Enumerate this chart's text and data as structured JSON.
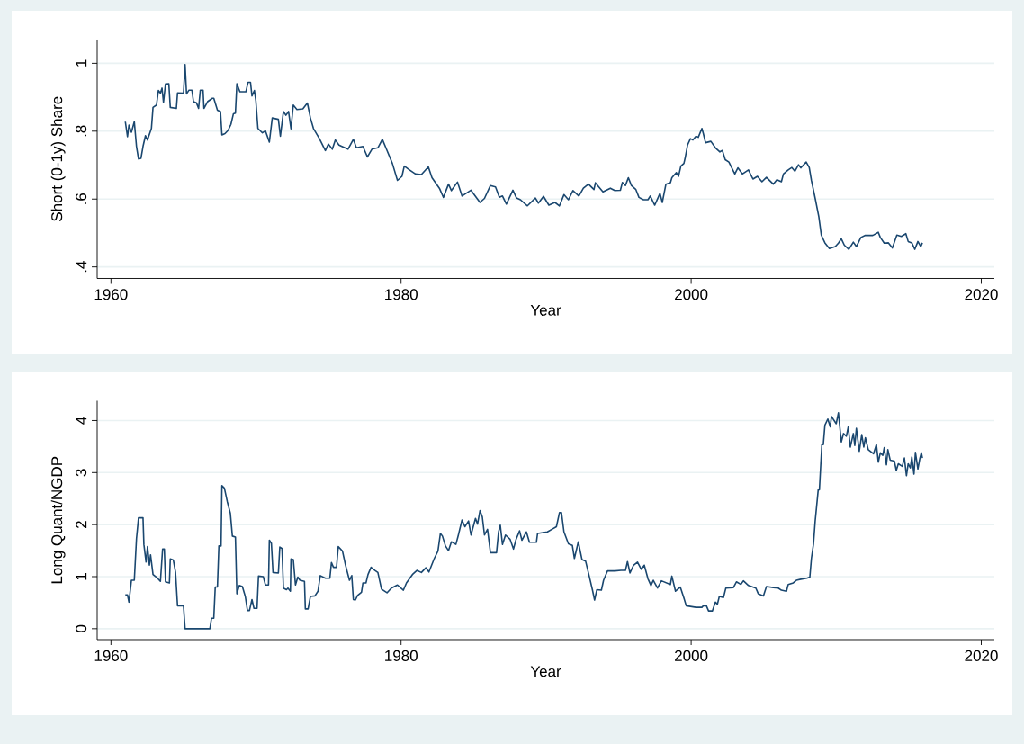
{
  "chart_data": [
    {
      "type": "line",
      "xlabel": "Year",
      "ylabel": "Short (0-1y) Share",
      "color": "#1a476f",
      "grid": "y",
      "xlim": [
        1959.05,
        2020.9
      ],
      "ylim": [
        0.366,
        1.07
      ],
      "xticks": [
        1960,
        1980,
        2000,
        2020
      ],
      "yticks": [
        {
          "value": 0.4,
          "label": ".4"
        },
        {
          "value": 0.6,
          "label": ".6"
        },
        {
          "value": 0.8,
          "label": ".8"
        },
        1
      ],
      "x": [
        1960.99,
        1961.14,
        1961.24,
        1961.41,
        1961.61,
        1961.76,
        1961.9,
        1962.07,
        1962.21,
        1962.38,
        1962.52,
        1962.79,
        1962.9,
        1963.14,
        1963.27,
        1963.41,
        1963.52,
        1963.62,
        1963.76,
        1963.99,
        1964.09,
        1964.51,
        1964.59,
        1965.0,
        1965.11,
        1965.21,
        1965.38,
        1965.58,
        1965.69,
        1965.89,
        1966.04,
        1966.16,
        1966.35,
        1966.41,
        1966.66,
        1966.99,
        1967.09,
        1967.34,
        1967.55,
        1967.65,
        1967.86,
        1968.07,
        1968.27,
        1968.44,
        1968.58,
        1968.68,
        1968.89,
        1969.3,
        1969.45,
        1969.62,
        1969.72,
        1969.89,
        1969.99,
        1970.13,
        1970.44,
        1970.65,
        1970.92,
        1971.12,
        1971.54,
        1971.68,
        1971.89,
        1972.06,
        1972.24,
        1972.41,
        1972.57,
        1972.82,
        1973.23,
        1973.54,
        1973.75,
        1973.96,
        1974.37,
        1974.78,
        1974.99,
        1975.26,
        1975.47,
        1975.72,
        1975.92,
        1976.34,
        1976.71,
        1976.92,
        1977.37,
        1977.68,
        1977.99,
        1978.4,
        1978.71,
        1979.03,
        1979.4,
        1979.75,
        1980.06,
        1980.22,
        1980.58,
        1980.99,
        1981.4,
        1981.88,
        1982.13,
        1982.64,
        1982.92,
        1983.27,
        1983.47,
        1983.89,
        1984.2,
        1984.82,
        1985.44,
        1985.75,
        1986.16,
        1986.51,
        1986.78,
        1986.99,
        1987.26,
        1987.71,
        1987.96,
        1988.23,
        1988.71,
        1989.26,
        1989.47,
        1989.82,
        1990.19,
        1990.61,
        1990.92,
        1991.23,
        1991.54,
        1991.85,
        1992.26,
        1992.57,
        1992.92,
        1993.3,
        1993.4,
        1993.92,
        1994.43,
        1994.74,
        1995.12,
        1995.26,
        1995.47,
        1995.67,
        1995.88,
        1996.19,
        1996.4,
        1996.71,
        1997.02,
        1997.18,
        1997.49,
        1997.85,
        1998.01,
        1998.26,
        1998.57,
        1998.67,
        1998.98,
        1999.13,
        1999.29,
        1999.5,
        1999.6,
        1999.75,
        1999.95,
        2000.12,
        2000.33,
        2000.49,
        2000.74,
        2000.84,
        2000.99,
        2001.36,
        2001.67,
        2001.98,
        2002.15,
        2002.35,
        2002.6,
        2003.01,
        2003.22,
        2003.53,
        2003.95,
        2004.26,
        2004.57,
        2004.88,
        2005.19,
        2005.66,
        2005.91,
        2006.22,
        2006.36,
        2006.69,
        2006.94,
        2007.15,
        2007.4,
        2007.56,
        2007.93,
        2008.14,
        2008.29,
        2008.55,
        2008.8,
        2008.97,
        2009.22,
        2009.53,
        2009.94,
        2010.15,
        2010.35,
        2010.56,
        2010.87,
        2011.18,
        2011.39,
        2011.7,
        2012.01,
        2012.52,
        2012.9,
        2013.04,
        2013.31,
        2013.6,
        2013.87,
        2014.18,
        2014.49,
        2014.8,
        2014.96,
        2015.21,
        2015.42,
        2015.63,
        2015.83,
        2015.94
      ],
      "values": [
        0.828,
        0.784,
        0.818,
        0.797,
        0.828,
        0.755,
        0.718,
        0.72,
        0.755,
        0.787,
        0.774,
        0.808,
        0.87,
        0.877,
        0.92,
        0.912,
        0.927,
        0.885,
        0.939,
        0.94,
        0.87,
        0.867,
        0.913,
        0.912,
        0.996,
        0.91,
        0.921,
        0.921,
        0.887,
        0.884,
        0.867,
        0.921,
        0.921,
        0.867,
        0.887,
        0.897,
        0.897,
        0.862,
        0.858,
        0.789,
        0.793,
        0.802,
        0.82,
        0.851,
        0.853,
        0.94,
        0.916,
        0.916,
        0.944,
        0.944,
        0.904,
        0.92,
        0.889,
        0.808,
        0.795,
        0.801,
        0.768,
        0.839,
        0.835,
        0.785,
        0.858,
        0.847,
        0.858,
        0.807,
        0.877,
        0.864,
        0.866,
        0.883,
        0.839,
        0.808,
        0.778,
        0.743,
        0.762,
        0.747,
        0.774,
        0.759,
        0.755,
        0.747,
        0.776,
        0.751,
        0.755,
        0.724,
        0.747,
        0.751,
        0.776,
        0.743,
        0.705,
        0.655,
        0.667,
        0.697,
        0.686,
        0.674,
        0.672,
        0.695,
        0.663,
        0.632,
        0.605,
        0.644,
        0.625,
        0.65,
        0.609,
        0.626,
        0.59,
        0.602,
        0.64,
        0.636,
        0.605,
        0.609,
        0.585,
        0.626,
        0.603,
        0.598,
        0.58,
        0.603,
        0.588,
        0.608,
        0.582,
        0.59,
        0.58,
        0.613,
        0.598,
        0.625,
        0.609,
        0.632,
        0.644,
        0.628,
        0.648,
        0.621,
        0.632,
        0.625,
        0.626,
        0.649,
        0.64,
        0.663,
        0.64,
        0.628,
        0.605,
        0.598,
        0.598,
        0.609,
        0.582,
        0.617,
        0.59,
        0.644,
        0.648,
        0.663,
        0.678,
        0.667,
        0.697,
        0.705,
        0.724,
        0.759,
        0.778,
        0.774,
        0.785,
        0.782,
        0.808,
        0.793,
        0.766,
        0.77,
        0.751,
        0.739,
        0.743,
        0.716,
        0.709,
        0.674,
        0.692,
        0.674,
        0.686,
        0.659,
        0.667,
        0.651,
        0.664,
        0.644,
        0.657,
        0.651,
        0.674,
        0.686,
        0.693,
        0.682,
        0.701,
        0.692,
        0.709,
        0.693,
        0.655,
        0.602,
        0.548,
        0.494,
        0.471,
        0.454,
        0.46,
        0.47,
        0.483,
        0.464,
        0.452,
        0.473,
        0.46,
        0.487,
        0.493,
        0.493,
        0.502,
        0.487,
        0.47,
        0.471,
        0.456,
        0.494,
        0.49,
        0.498,
        0.475,
        0.471,
        0.452,
        0.475,
        0.46,
        0.471
      ]
    },
    {
      "type": "line",
      "xlabel": "Year",
      "ylabel": "Long Quant/NGDP",
      "color": "#1a476f",
      "grid": "y",
      "xlim": [
        1959.05,
        2020.9
      ],
      "ylim": [
        -0.21,
        4.38
      ],
      "xticks": [
        1960,
        1980,
        2000,
        2020
      ],
      "yticks": [
        0,
        1,
        2,
        3,
        4
      ],
      "x": [
        1960.99,
        1961.14,
        1961.24,
        1961.41,
        1961.61,
        1961.76,
        1961.9,
        1962.21,
        1962.27,
        1962.42,
        1962.52,
        1962.65,
        1962.73,
        1962.9,
        1963.21,
        1963.41,
        1963.56,
        1963.68,
        1963.76,
        1964.03,
        1964.09,
        1964.3,
        1964.45,
        1964.59,
        1965.0,
        1965.11,
        1966.82,
        1966.93,
        1967.09,
        1967.19,
        1967.34,
        1967.44,
        1967.59,
        1967.65,
        1967.82,
        1968.02,
        1968.23,
        1968.37,
        1968.58,
        1968.68,
        1968.85,
        1969.06,
        1969.26,
        1969.41,
        1969.55,
        1969.72,
        1969.86,
        1970.07,
        1970.17,
        1970.5,
        1970.65,
        1970.86,
        1970.92,
        1971.06,
        1971.17,
        1971.54,
        1971.64,
        1971.79,
        1971.89,
        1972.1,
        1972.2,
        1972.37,
        1972.41,
        1972.57,
        1972.72,
        1972.88,
        1973.03,
        1973.34,
        1973.4,
        1973.59,
        1973.75,
        1974.06,
        1974.27,
        1974.43,
        1974.78,
        1975.09,
        1975.2,
        1975.34,
        1975.55,
        1975.67,
        1975.96,
        1976.17,
        1976.44,
        1976.6,
        1976.71,
        1976.85,
        1977.0,
        1977.27,
        1977.37,
        1977.58,
        1977.72,
        1977.93,
        1978.2,
        1978.4,
        1978.65,
        1979.03,
        1979.33,
        1979.75,
        1980.16,
        1980.37,
        1980.78,
        1981.09,
        1981.4,
        1981.71,
        1981.92,
        1982.29,
        1982.54,
        1982.7,
        1982.71,
        1982.85,
        1983.06,
        1983.27,
        1983.47,
        1983.78,
        1983.95,
        1984.2,
        1984.4,
        1984.65,
        1984.82,
        1985.13,
        1985.27,
        1985.44,
        1985.6,
        1985.75,
        1985.96,
        1986.16,
        1986.58,
        1986.72,
        1986.84,
        1986.99,
        1987.2,
        1987.51,
        1987.75,
        1987.92,
        1988.17,
        1988.33,
        1988.64,
        1988.85,
        1989.33,
        1989.41,
        1990.09,
        1990.4,
        1990.71,
        1990.92,
        1991.06,
        1991.23,
        1991.54,
        1991.81,
        1991.95,
        1992.22,
        1992.47,
        1992.72,
        1992.99,
        1993.19,
        1993.34,
        1993.5,
        1993.81,
        1993.96,
        1994.23,
        1994.74,
        1995.16,
        1995.47,
        1995.61,
        1995.78,
        1996.03,
        1996.3,
        1996.56,
        1996.77,
        1997.02,
        1997.23,
        1997.39,
        1997.68,
        1997.95,
        1998.57,
        1998.67,
        1998.92,
        1999.25,
        1999.5,
        1999.66,
        2000.33,
        2000.74,
        2000.84,
        2001.05,
        2001.2,
        2001.46,
        2001.67,
        2001.81,
        2001.94,
        2002.23,
        2002.39,
        2002.91,
        2003.12,
        2003.43,
        2003.6,
        2003.95,
        2004.46,
        2004.63,
        2004.98,
        2005.19,
        2005.66,
        2006.01,
        2006.22,
        2006.57,
        2006.69,
        2007.04,
        2007.25,
        2007.56,
        2007.97,
        2008.18,
        2008.29,
        2008.43,
        2008.55,
        2008.76,
        2008.84,
        2009.01,
        2009.11,
        2009.22,
        2009.42,
        2009.59,
        2009.67,
        2010.0,
        2010.15,
        2010.35,
        2010.5,
        2010.7,
        2010.83,
        2010.97,
        2011.18,
        2011.28,
        2011.39,
        2011.59,
        2011.76,
        2011.9,
        2012.01,
        2012.21,
        2012.57,
        2012.77,
        2012.9,
        2013.04,
        2013.21,
        2013.31,
        2013.46,
        2013.56,
        2013.72,
        2014.01,
        2014.14,
        2014.28,
        2014.55,
        2014.7,
        2014.84,
        2014.96,
        2015.11,
        2015.21,
        2015.36,
        2015.46,
        2015.63,
        2015.77,
        2015.87,
        2015.94
      ],
      "values": [
        0.65,
        0.65,
        0.51,
        0.93,
        0.93,
        1.73,
        2.13,
        2.13,
        1.62,
        1.28,
        1.58,
        1.22,
        1.42,
        1.04,
        0.97,
        0.91,
        1.53,
        1.53,
        0.9,
        0.88,
        1.34,
        1.32,
        1.09,
        0.44,
        0.44,
        0.0,
        0.0,
        0.2,
        0.2,
        0.8,
        0.8,
        1.59,
        1.59,
        2.75,
        2.7,
        2.44,
        2.22,
        1.78,
        1.76,
        0.67,
        0.83,
        0.81,
        0.62,
        0.35,
        0.35,
        0.56,
        0.39,
        0.39,
        1.01,
        1.0,
        0.84,
        0.84,
        1.7,
        1.64,
        1.08,
        1.07,
        1.57,
        1.54,
        0.78,
        0.75,
        0.78,
        0.72,
        1.34,
        1.33,
        0.84,
        0.99,
        0.93,
        0.91,
        0.38,
        0.38,
        0.62,
        0.63,
        0.72,
        1.02,
        0.97,
        0.97,
        1.27,
        1.18,
        1.18,
        1.58,
        1.49,
        1.22,
        0.93,
        1.02,
        0.56,
        0.55,
        0.64,
        0.7,
        0.88,
        0.88,
        1.04,
        1.18,
        1.12,
        1.08,
        0.76,
        0.69,
        0.78,
        0.84,
        0.74,
        0.88,
        1.04,
        1.12,
        1.08,
        1.17,
        1.09,
        1.35,
        1.49,
        1.81,
        1.83,
        1.78,
        1.59,
        1.5,
        1.67,
        1.62,
        1.8,
        2.09,
        1.96,
        2.07,
        1.8,
        2.12,
        2.01,
        2.27,
        2.15,
        1.8,
        1.91,
        1.46,
        1.46,
        1.86,
        1.99,
        1.62,
        1.8,
        1.72,
        1.53,
        1.71,
        1.88,
        1.7,
        1.86,
        1.66,
        1.66,
        1.83,
        1.86,
        1.91,
        1.96,
        2.23,
        2.23,
        1.86,
        1.63,
        1.6,
        1.35,
        1.67,
        1.33,
        1.3,
        0.99,
        0.75,
        0.55,
        0.75,
        0.74,
        0.93,
        1.11,
        1.11,
        1.12,
        1.12,
        1.29,
        1.07,
        1.22,
        1.28,
        1.14,
        1.22,
        0.96,
        0.83,
        0.93,
        0.78,
        0.92,
        0.85,
        1.01,
        0.72,
        0.8,
        0.59,
        0.44,
        0.41,
        0.41,
        0.44,
        0.44,
        0.34,
        0.34,
        0.51,
        0.47,
        0.62,
        0.6,
        0.78,
        0.79,
        0.9,
        0.85,
        0.92,
        0.83,
        0.78,
        0.67,
        0.63,
        0.81,
        0.79,
        0.78,
        0.74,
        0.72,
        0.85,
        0.88,
        0.93,
        0.95,
        0.97,
        0.99,
        1.35,
        1.62,
        2.07,
        2.67,
        2.67,
        3.54,
        3.54,
        3.91,
        4.03,
        3.88,
        4.08,
        3.94,
        4.15,
        3.59,
        3.75,
        3.7,
        3.88,
        3.49,
        3.75,
        3.52,
        3.85,
        3.41,
        3.73,
        3.49,
        3.67,
        3.44,
        3.36,
        3.54,
        3.2,
        3.38,
        3.33,
        3.48,
        3.15,
        3.44,
        3.24,
        3.22,
        3.04,
        3.17,
        3.12,
        3.28,
        2.94,
        3.17,
        3.09,
        3.3,
        2.97,
        3.39,
        3.07,
        3.28,
        3.38,
        3.28
      ]
    }
  ]
}
